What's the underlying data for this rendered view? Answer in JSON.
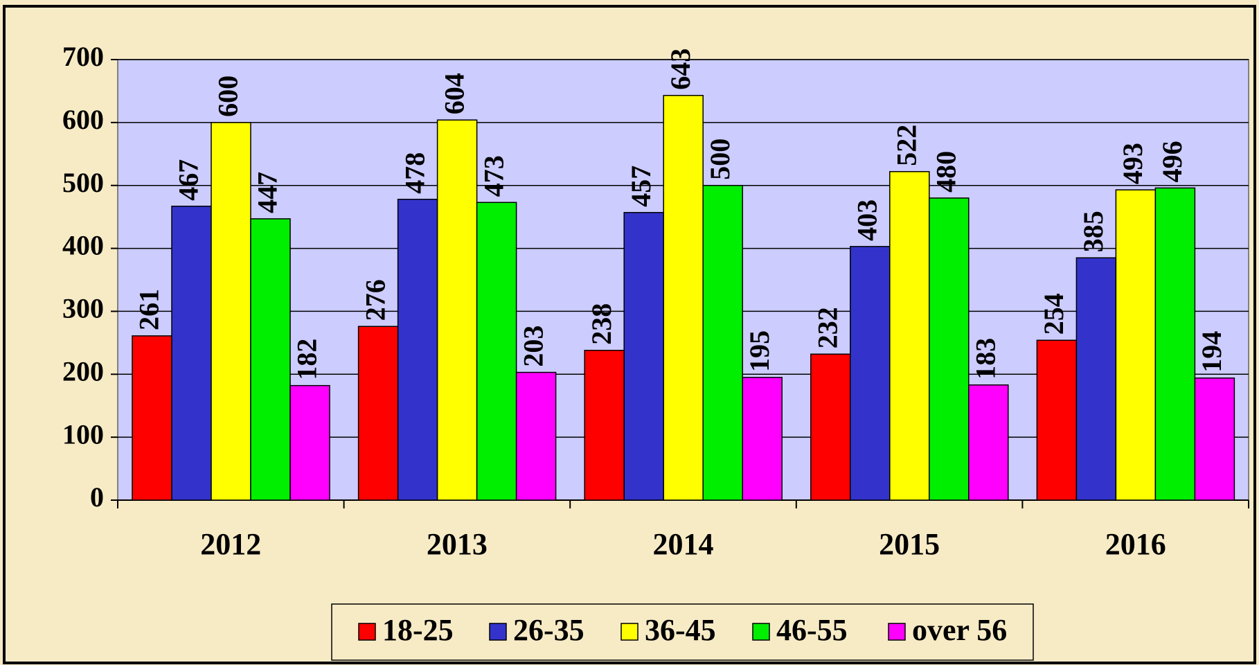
{
  "chart_data": {
    "type": "bar",
    "categories": [
      "2012",
      "2013",
      "2014",
      "2015",
      "2016"
    ],
    "series": [
      {
        "name": "18-25",
        "color": "#ff0000",
        "values": [
          261,
          276,
          238,
          232,
          254
        ]
      },
      {
        "name": "26-35",
        "color": "#3333cc",
        "values": [
          467,
          478,
          457,
          403,
          385
        ]
      },
      {
        "name": "36-45",
        "color": "#ffff00",
        "values": [
          600,
          604,
          643,
          522,
          493
        ]
      },
      {
        "name": "46-55",
        "color": "#00ee00",
        "values": [
          447,
          473,
          500,
          480,
          496
        ]
      },
      {
        "name": "over 56",
        "color": "#ff00ff",
        "values": [
          182,
          203,
          195,
          183,
          194
        ]
      }
    ],
    "ylim": [
      0,
      700
    ],
    "yticks": [
      0,
      100,
      200,
      300,
      400,
      500,
      600,
      700
    ],
    "grid": true,
    "legend": "bottom"
  }
}
